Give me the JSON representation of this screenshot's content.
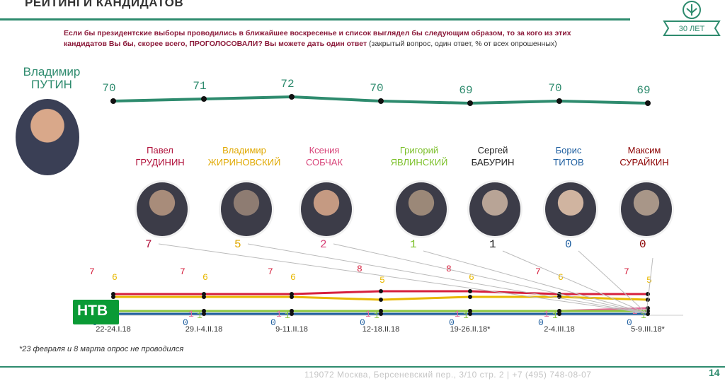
{
  "header": {
    "title": "РЕЙТИНГИ КАНДИДАТОВ",
    "logo_text": "30 ЛЕТ",
    "question": "Если бы президентские выборы проводились в ближайшее воскресенье и список выглядел бы следующим образом, то за кого из этих кандидатов Вы бы, скорее всего, ПРОГОЛОСОВАЛИ? Вы можете дать один ответ",
    "question_note": "(закрытый вопрос, один ответ, % от всех опрошенных)"
  },
  "putin": {
    "first_name": "Владимир",
    "last_name": "ПУТИН"
  },
  "candidates": [
    {
      "first": "Павел",
      "last": "ГРУДИНИН",
      "color": "#b0103a",
      "value": "7"
    },
    {
      "first": "Владимир",
      "last": "ЖИРИНОВСКИЙ",
      "color": "#e0a800",
      "value": "5"
    },
    {
      "first": "Ксения",
      "last": "СОБЧАК",
      "color": "#d8457a",
      "value": "2"
    },
    {
      "first": "Григорий",
      "last": "ЯВЛИНСКИЙ",
      "color": "#7cc02a",
      "value": "1"
    },
    {
      "first": "Сергей",
      "last": "БАБУРИН",
      "color": "#222222",
      "value": "1"
    },
    {
      "first": "Борис",
      "last": "ТИТОВ",
      "color": "#1f5fa0",
      "value": "0"
    },
    {
      "first": "Максим",
      "last": "СУРАЙКИН",
      "color": "#8b0000",
      "value": "0"
    }
  ],
  "chart_data": [
    {
      "type": "line",
      "series": [
        {
          "name": "ПУТИН",
          "values": [
            70,
            71,
            72,
            70,
            69,
            70,
            69
          ]
        }
      ]
    },
    {
      "type": "line",
      "categories": [
        "22-24.I.18",
        "29.I-4.II.18",
        "9-11.II.18",
        "12-18.II.18",
        "19-26.II.18*",
        "2-4.III.18",
        "5-9.III.18*"
      ],
      "series": [
        {
          "name": "ГРУДИНИН",
          "values": [
            7,
            7,
            7,
            8,
            8,
            7,
            7
          ]
        },
        {
          "name": "ЖИРИНОВСКИЙ",
          "values": [
            6,
            6,
            6,
            5,
            6,
            6,
            5
          ]
        },
        {
          "name": "СОБЧАК",
          "values": [
            1,
            1,
            1,
            1,
            1,
            1,
            2
          ]
        },
        {
          "name": "ЯВЛИНСКИЙ",
          "values": [
            1,
            1,
            1,
            1,
            1,
            1,
            1
          ]
        },
        {
          "name": "ТИТОВ",
          "values": [
            0,
            0,
            0,
            0,
            0,
            0,
            0
          ]
        }
      ]
    }
  ],
  "ntv_logo": "НТВ",
  "footnote": "*23 февраля и 8 марта опрос не проводился",
  "footer": {
    "address": "119072 Москва, Берсеневский пер., 3/10 стр. 2  |  +7 (495) 748-08-07",
    "page": "14"
  }
}
